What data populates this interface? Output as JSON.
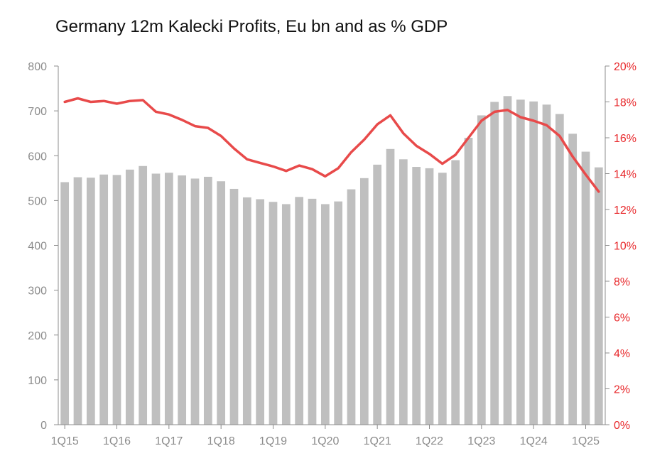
{
  "chart_data": {
    "type": "bar",
    "title": "Germany 12m Kalecki Profits, Eu bn and as % GDP",
    "xlabel": "",
    "ylabel": "",
    "ylim": [
      0,
      800
    ],
    "y2lim": [
      0,
      20
    ],
    "y_ticks": [
      "0",
      "100",
      "200",
      "300",
      "400",
      "500",
      "600",
      "700",
      "800"
    ],
    "y2_ticks": [
      "0%",
      "2%",
      "4%",
      "6%",
      "8%",
      "10%",
      "12%",
      "14%",
      "16%",
      "18%",
      "20%"
    ],
    "x_tick_labels": [
      "1Q15",
      "1Q16",
      "1Q17",
      "1Q18",
      "1Q19",
      "1Q20",
      "1Q21",
      "1Q22",
      "1Q23",
      "1Q24",
      "1Q25"
    ],
    "categories": [
      "1Q15",
      "2Q15",
      "3Q15",
      "4Q15",
      "1Q16",
      "2Q16",
      "3Q16",
      "4Q16",
      "1Q17",
      "2Q17",
      "3Q17",
      "4Q17",
      "1Q18",
      "2Q18",
      "3Q18",
      "4Q18",
      "1Q19",
      "2Q19",
      "3Q19",
      "4Q19",
      "1Q20",
      "2Q20",
      "3Q20",
      "4Q20",
      "1Q21",
      "2Q21",
      "3Q21",
      "4Q21",
      "1Q22",
      "2Q22",
      "3Q22",
      "4Q22",
      "1Q23",
      "2Q23",
      "3Q23",
      "4Q23",
      "1Q24",
      "2Q24",
      "3Q24",
      "4Q24",
      "1Q25",
      "2Q25"
    ],
    "series": [
      {
        "name": "",
        "type": "bar",
        "axis": "left",
        "color": "#bfbfbf",
        "values": [
          541,
          552,
          551,
          558,
          557,
          569,
          577,
          560,
          562,
          556,
          549,
          553,
          543,
          526,
          507,
          503,
          497,
          492,
          508,
          504,
          492,
          498,
          525,
          550,
          580,
          615,
          592,
          575,
          572,
          562,
          590,
          640,
          690,
          720,
          733,
          725,
          721,
          714,
          693,
          649,
          609,
          574
        ]
      },
      {
        "name": "",
        "type": "line",
        "axis": "right",
        "color": "#e84a4a",
        "values": [
          18.0,
          18.2,
          18.0,
          18.05,
          17.9,
          18.05,
          18.1,
          17.45,
          17.3,
          17.0,
          16.65,
          16.55,
          16.1,
          15.4,
          14.8,
          14.6,
          14.4,
          14.15,
          14.45,
          14.25,
          13.85,
          14.3,
          15.2,
          15.9,
          16.75,
          17.25,
          16.25,
          15.55,
          15.1,
          14.55,
          15.05,
          16.0,
          16.95,
          17.45,
          17.55,
          17.15,
          16.95,
          16.7,
          16.1,
          14.95,
          13.95,
          13.0
        ]
      }
    ],
    "grid": false,
    "legend": "none"
  }
}
